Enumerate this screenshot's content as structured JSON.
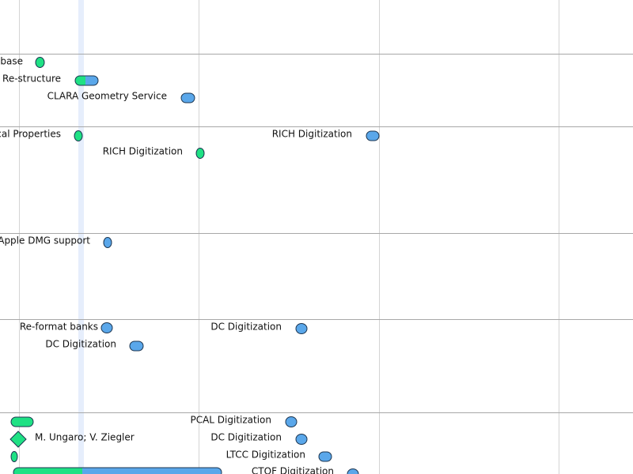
{
  "tasks": [
    {
      "label": "abase"
    },
    {
      "label": "Re-structure"
    },
    {
      "label": "CLARA Geometry Service"
    },
    {
      "label": "cal Properties"
    },
    {
      "label": "RICH Digitization"
    },
    {
      "label": "RICH Digitization"
    },
    {
      "label": "Apple DMG support"
    },
    {
      "label": "Re-format banks"
    },
    {
      "label": "DC Digitization"
    },
    {
      "label": "DC Digitization"
    },
    {
      "label": "PCAL Digitization"
    },
    {
      "label": "M. Ungaro; V. Ziegler"
    },
    {
      "label": "DC Digitization"
    },
    {
      "label": "LTCC Digitization"
    },
    {
      "label": "CTOF Digitization"
    }
  ]
}
